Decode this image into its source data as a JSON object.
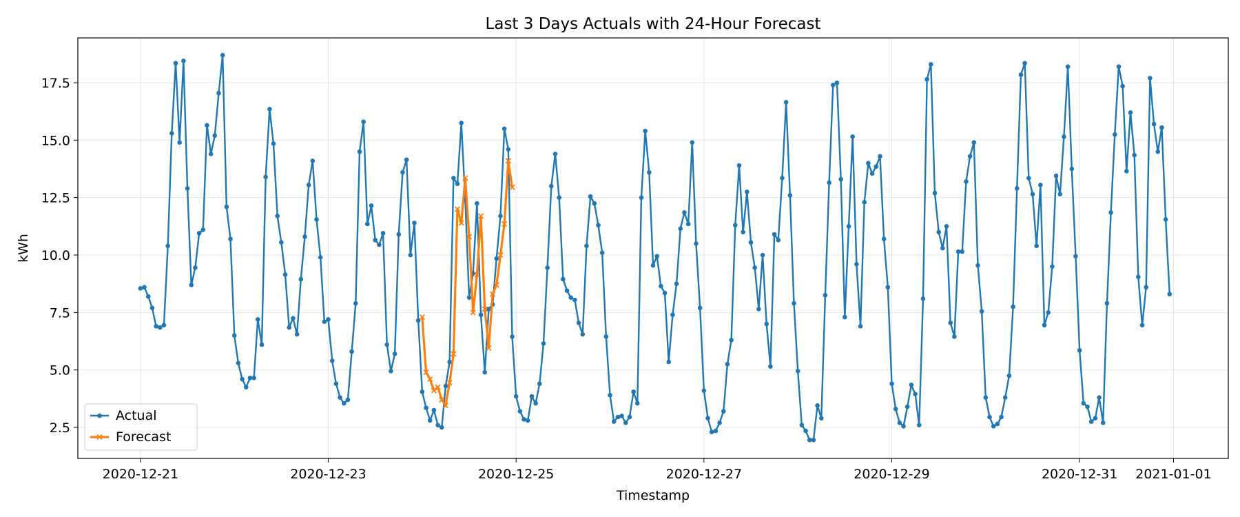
{
  "chart_data": {
    "type": "line",
    "title": "Last 3 Days Actuals with 24-Hour Forecast",
    "xlabel": "Timestamp",
    "ylabel": "kWh",
    "x_range": [
      "2020-12-20T08:00",
      "2021-01-01T14:00"
    ],
    "ylim": [
      1.15,
      19.45
    ],
    "x_ticks": [
      "2020-12-21",
      "2020-12-23",
      "2020-12-25",
      "2020-12-27",
      "2020-12-29",
      "2020-12-31",
      "2021-01-01"
    ],
    "y_ticks": [
      "2.5",
      "5.0",
      "7.5",
      "10.0",
      "12.5",
      "15.0",
      "17.5"
    ],
    "grid": true,
    "legend_position": "lower-left",
    "series": [
      {
        "name": "Actual",
        "color": "#1f77b4",
        "marker": "circle",
        "start": "2020-12-21T00:00",
        "step_hours": 1,
        "values": [
          8.55,
          8.6,
          8.2,
          7.7,
          6.9,
          6.85,
          6.95,
          10.4,
          15.3,
          18.35,
          14.9,
          18.45,
          12.9,
          8.7,
          9.45,
          10.95,
          11.1,
          15.65,
          14.4,
          15.2,
          17.05,
          18.7,
          12.1,
          10.7,
          6.5,
          5.3,
          4.6,
          4.25,
          4.65,
          4.65,
          7.2,
          6.1,
          13.4,
          16.35,
          14.85,
          11.7,
          10.55,
          9.15,
          6.85,
          7.25,
          6.55,
          8.95,
          10.8,
          13.05,
          14.1,
          11.55,
          9.9,
          7.1,
          7.2,
          5.4,
          4.4,
          3.8,
          3.55,
          3.7,
          5.8,
          7.9,
          14.5,
          15.8,
          11.35,
          12.15,
          10.65,
          10.45,
          10.95,
          6.1,
          4.95,
          5.7,
          10.9,
          13.6,
          14.15,
          10.0,
          11.4,
          7.15,
          4.05,
          3.35,
          2.8,
          3.25,
          2.6,
          2.5,
          4.3,
          5.35,
          13.35,
          13.1,
          15.75,
          12.4,
          8.15,
          9.2,
          12.25,
          7.4,
          4.9,
          7.65,
          7.85,
          9.85,
          11.7,
          15.5,
          14.6,
          6.45,
          3.85,
          3.2,
          2.85,
          2.8,
          3.85,
          3.55,
          4.4,
          6.15,
          9.45,
          13.0,
          14.4,
          12.5,
          8.95,
          8.45,
          8.15,
          8.05,
          7.05,
          6.55,
          10.4,
          12.55,
          12.25,
          11.3,
          10.1,
          6.45,
          3.9,
          2.75,
          2.95,
          3.0,
          2.7,
          2.95,
          4.05,
          3.55,
          12.5,
          15.4,
          13.6,
          9.55,
          9.95,
          8.65,
          8.35,
          5.35,
          7.4,
          8.75,
          11.15,
          11.85,
          11.35,
          14.9,
          10.5,
          7.7,
          4.1,
          2.9,
          2.3,
          2.35,
          2.7,
          3.2,
          5.25,
          6.3,
          11.3,
          13.9,
          11.0,
          12.75,
          10.55,
          9.45,
          7.65,
          10.0,
          7.0,
          5.15,
          10.9,
          10.65,
          13.35,
          16.65,
          12.6,
          7.9,
          4.95,
          2.6,
          2.35,
          1.95,
          1.95,
          3.45,
          2.9,
          8.25,
          13.15,
          17.4,
          17.5,
          13.3,
          7.3,
          11.25,
          15.15,
          9.6,
          6.9,
          12.3,
          14.0,
          13.55,
          13.85,
          14.3,
          10.7,
          8.6,
          4.4,
          3.3,
          2.7,
          2.55,
          3.4,
          4.35,
          3.95,
          2.6,
          8.1,
          17.65,
          18.3,
          12.7,
          11.0,
          10.3,
          11.25,
          7.05,
          6.45,
          10.15,
          10.15,
          13.2,
          14.3,
          14.9,
          9.55,
          7.55,
          3.8,
          2.95,
          2.55,
          2.65,
          2.95,
          3.8,
          4.75,
          7.75,
          12.9,
          17.85,
          18.35,
          13.35,
          12.65,
          10.4,
          13.05,
          6.95,
          7.5,
          9.5,
          13.45,
          12.65,
          15.15,
          18.2,
          13.75,
          9.95,
          5.85,
          3.55,
          3.4,
          2.75,
          2.9,
          3.8,
          2.7,
          7.9,
          11.85,
          15.25,
          18.2,
          17.35,
          13.65,
          16.2,
          14.35,
          9.05,
          6.95,
          8.6,
          17.7,
          15.7,
          14.5,
          15.55,
          11.55,
          8.3
        ]
      },
      {
        "name": "Forecast",
        "color": "#ff7f0e",
        "marker": "x",
        "start": "2020-12-24T00:00",
        "step_hours": 1,
        "values": [
          7.3,
          4.9,
          4.6,
          4.1,
          4.25,
          3.7,
          3.45,
          4.45,
          5.7,
          12.0,
          11.4,
          13.35,
          10.8,
          7.5,
          9.15,
          11.7,
          7.65,
          5.95,
          8.3,
          8.7,
          10.0,
          11.35,
          14.1,
          12.95
        ]
      }
    ]
  }
}
